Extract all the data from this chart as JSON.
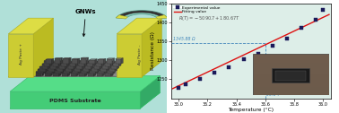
{
  "chart_bg_color": "#ddeee8",
  "experimental_x": [
    35.0,
    35.05,
    35.15,
    35.25,
    35.35,
    35.45,
    35.55,
    35.65,
    35.75,
    35.85,
    35.95,
    36.0
  ],
  "experimental_y": [
    1228,
    1238,
    1252,
    1268,
    1282,
    1302,
    1318,
    1338,
    1358,
    1385,
    1408,
    1432
  ],
  "fit_slope": 180.67,
  "fit_intercept": -5090.7,
  "dashed_y": 1345.88,
  "dashed_x": 35.6,
  "ylabel": "Resistance (Ω)",
  "xlabel": "Temperature (°C)",
  "ylim": [
    1200,
    1450
  ],
  "xlim": [
    34.95,
    36.05
  ],
  "xticks": [
    35.0,
    35.2,
    35.4,
    35.6,
    35.8,
    36.0
  ],
  "yticks": [
    1250,
    1300,
    1350,
    1400,
    1450
  ],
  "exp_color": "#1a1a5a",
  "fit_color": "#dd1111",
  "dashed_color": "#4488bb",
  "gnws_label": "GNWs",
  "ag_paste_left": "Ag Paste +",
  "ag_paste_right": "Ag Paste –",
  "pdms_label": "PDMS Substrate",
  "left_bg": "#b0e0d8",
  "pdms_color": "#55dd88",
  "pdms_edge": "#33bb66",
  "ag_color": "#dddd44",
  "ag_edge": "#aaaa22",
  "gnw_dark": "#303030",
  "gnw_mid": "#505050",
  "gnw_light": "#707070"
}
